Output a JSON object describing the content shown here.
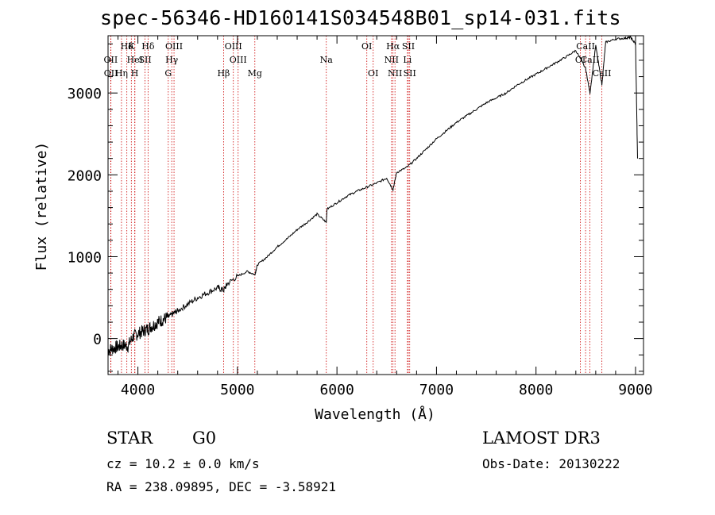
{
  "page": {
    "title": "spec-56346-HD160141S034548B01_sp14-031.fits",
    "class_label": "STAR",
    "subclass_label": "G0",
    "survey": "LAMOST DR3",
    "cz_text": "cz = 10.2 ± 0.0 km/s",
    "obs_date_text": "Obs-Date: 20130222",
    "radec_text": "RA = 238.09895, DEC =  -3.58921"
  },
  "colors": {
    "line_marker": "#cc0000",
    "spectrum": "#000000",
    "axes": "#000000"
  },
  "chart_data": {
    "type": "line",
    "title": "spec-56346-HD160141S034548B01_sp14-031.fits",
    "xlabel": "Wavelength (Å)",
    "ylabel": "Flux (relative)",
    "xlim": [
      3700,
      9080
    ],
    "ylim": [
      -440,
      3700
    ],
    "xticks": [
      4000,
      5000,
      6000,
      7000,
      8000,
      9000
    ],
    "yticks": [
      0,
      1000,
      2000,
      3000
    ],
    "series": [
      {
        "name": "flux",
        "x": [
          3700,
          3750,
          3800,
          3850,
          3900,
          3950,
          4000,
          4050,
          4100,
          4150,
          4200,
          4250,
          4300,
          4350,
          4400,
          4500,
          4600,
          4700,
          4800,
          4861,
          4900,
          5000,
          5100,
          5175,
          5200,
          5300,
          5400,
          5500,
          5600,
          5700,
          5800,
          5893,
          5900,
          6000,
          6100,
          6200,
          6300,
          6400,
          6500,
          6563,
          6600,
          6700,
          6800,
          6900,
          7000,
          7100,
          7200,
          7300,
          7400,
          7500,
          7600,
          7700,
          7800,
          7900,
          8000,
          8100,
          8200,
          8300,
          8400,
          8498,
          8542,
          8600,
          8662,
          8700,
          8800,
          8900,
          8950,
          9000,
          9020
        ],
        "y": [
          -140,
          -120,
          -100,
          -80,
          -90,
          20,
          60,
          90,
          120,
          160,
          200,
          230,
          260,
          300,
          340,
          420,
          500,
          560,
          620,
          590,
          670,
          760,
          820,
          780,
          900,
          1000,
          1120,
          1220,
          1330,
          1420,
          1520,
          1420,
          1580,
          1660,
          1740,
          1800,
          1850,
          1900,
          1960,
          1820,
          2030,
          2090,
          2200,
          2320,
          2440,
          2540,
          2640,
          2720,
          2800,
          2880,
          2940,
          3000,
          3090,
          3160,
          3230,
          3300,
          3370,
          3440,
          3520,
          3300,
          3000,
          3580,
          3100,
          3620,
          3660,
          3670,
          3680,
          3600,
          2200
        ],
        "color": "#000000"
      }
    ],
    "line_markers": [
      {
        "label": "Hδ",
        "wavelength": 3889,
        "row": 0
      },
      {
        "label": "K",
        "wavelength": 3934,
        "row": 0
      },
      {
        "label": "Hδ",
        "wavelength": 4102,
        "row": 0
      },
      {
        "label": "OIII",
        "wavelength": 4363,
        "row": 0
      },
      {
        "label": "OIII",
        "wavelength": 4959,
        "row": 0
      },
      {
        "label": "OI",
        "wavelength": 6300,
        "row": 0
      },
      {
        "label": "Hα",
        "wavelength": 6563,
        "row": 0
      },
      {
        "label": "SII",
        "wavelength": 6717,
        "row": 0
      },
      {
        "label": "CaII",
        "wavelength": 8498,
        "row": 0
      },
      {
        "label": "OII",
        "wavelength": 3727,
        "row": 1
      },
      {
        "label": "HeI",
        "wavelength": 3970,
        "row": 1
      },
      {
        "label": "SII",
        "wavelength": 4072,
        "row": 1
      },
      {
        "label": "Hγ",
        "wavelength": 4340,
        "row": 1
      },
      {
        "label": "OIII",
        "wavelength": 5007,
        "row": 1
      },
      {
        "label": "Na",
        "wavelength": 5893,
        "row": 1
      },
      {
        "label": "NII",
        "wavelength": 6548,
        "row": 1
      },
      {
        "label": "Li",
        "wavelength": 6708,
        "row": 1
      },
      {
        "label": "OI",
        "wavelength": 8446,
        "row": 1
      },
      {
        "label": "CaII",
        "wavelength": 8542,
        "row": 1
      },
      {
        "label": "OII",
        "wavelength": 3729,
        "row": 2
      },
      {
        "label": "Hη",
        "wavelength": 3835,
        "row": 2
      },
      {
        "label": "H",
        "wavelength": 3968,
        "row": 2
      },
      {
        "label": "G",
        "wavelength": 4305,
        "row": 2
      },
      {
        "label": "Hβ",
        "wavelength": 4861,
        "row": 2
      },
      {
        "label": "Mg",
        "wavelength": 5175,
        "row": 2
      },
      {
        "label": "OI",
        "wavelength": 6364,
        "row": 2
      },
      {
        "label": "NII",
        "wavelength": 6583,
        "row": 2
      },
      {
        "label": "SII",
        "wavelength": 6731,
        "row": 2
      },
      {
        "label": "CaII",
        "wavelength": 8662,
        "row": 2
      }
    ]
  }
}
